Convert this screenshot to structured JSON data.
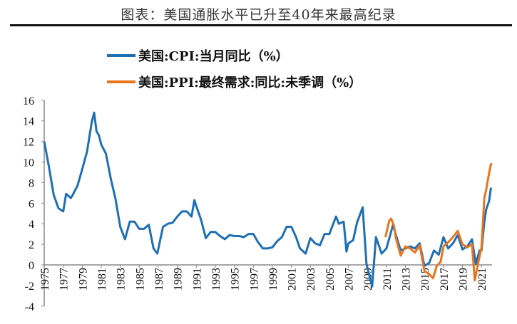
{
  "title": "图表：美国通胀水平已升至40年来最高纪录",
  "chart_data": {
    "type": "line",
    "title": "图表：美国通胀水平已升至40年来最高纪录",
    "xlabel": "",
    "ylabel": "",
    "ylim": [
      -4,
      16
    ],
    "xlim": [
      1975,
      2022.2
    ],
    "yticks": [
      "16",
      "14",
      "12",
      "10",
      "8",
      "6",
      "4",
      "2",
      "0",
      "-2",
      "-4"
    ],
    "xticks": [
      "1975",
      "1977",
      "1979",
      "1981",
      "1983",
      "1985",
      "1987",
      "1989",
      "1991",
      "1993",
      "1995",
      "1997",
      "1999",
      "2001",
      "2003",
      "2005",
      "2007",
      "2009",
      "2011",
      "2013",
      "2015",
      "2017",
      "2019",
      "2021"
    ],
    "legend_position": "top",
    "series": [
      {
        "name": "美国:CPI:当月同比（%）",
        "color": "#1f6fb4",
        "x": [
          1975.0,
          1975.5,
          1976.0,
          1976.5,
          1977.0,
          1977.3,
          1977.8,
          1978.0,
          1978.5,
          1979.0,
          1979.5,
          1980.0,
          1980.25,
          1980.5,
          1980.75,
          1981.0,
          1981.5,
          1982.0,
          1982.5,
          1983.0,
          1983.5,
          1984.0,
          1984.5,
          1985.0,
          1985.5,
          1986.0,
          1986.5,
          1986.9,
          1987.5,
          1988.0,
          1988.5,
          1989.0,
          1989.5,
          1990.0,
          1990.5,
          1990.8,
          1991.0,
          1991.5,
          1992.0,
          1992.5,
          1993.0,
          1993.5,
          1994.0,
          1994.5,
          1995.0,
          1995.5,
          1996.0,
          1996.5,
          1997.0,
          1997.5,
          1998.0,
          1998.5,
          1999.0,
          1999.5,
          2000.0,
          2000.5,
          2001.0,
          2001.5,
          2001.9,
          2002.5,
          2003.0,
          2003.5,
          2004.0,
          2004.5,
          2005.0,
          2005.7,
          2006.0,
          2006.5,
          2006.8,
          2007.0,
          2007.5,
          2007.9,
          2008.5,
          2008.9,
          2009.5,
          2009.9,
          2010.5,
          2011.0,
          2011.7,
          2012.0,
          2012.5,
          2013.0,
          2013.5,
          2014.0,
          2014.5,
          2015.0,
          2015.5,
          2016.0,
          2016.5,
          2017.0,
          2017.5,
          2018.0,
          2018.5,
          2019.0,
          2019.5,
          2020.0,
          2020.4,
          2020.8,
          2021.0,
          2021.3,
          2021.5,
          2021.8,
          2022.0
        ],
        "y": [
          12,
          9.5,
          6.8,
          5.5,
          5.2,
          6.9,
          6.5,
          6.8,
          7.7,
          9.3,
          11.0,
          13.9,
          14.8,
          13,
          12.6,
          11.7,
          10.8,
          8.4,
          6.4,
          3.7,
          2.5,
          4.2,
          4.2,
          3.5,
          3.5,
          3.9,
          1.6,
          1.1,
          3.7,
          4.0,
          4.1,
          4.7,
          5.2,
          5.2,
          4.7,
          6.3,
          5.7,
          4.4,
          2.6,
          3.2,
          3.2,
          2.8,
          2.5,
          2.9,
          2.8,
          2.8,
          2.7,
          3.0,
          3.0,
          2.2,
          1.6,
          1.6,
          1.7,
          2.3,
          2.7,
          3.7,
          3.7,
          2.7,
          1.6,
          1.1,
          2.6,
          2.1,
          1.9,
          3.0,
          3.0,
          4.7,
          4.0,
          4.2,
          1.3,
          2.1,
          2.4,
          4.1,
          5.6,
          0.1,
          -2.1,
          2.7,
          1.1,
          1.6,
          3.9,
          2.9,
          1.4,
          1.6,
          1.8,
          1.6,
          2.1,
          -0.1,
          0.2,
          1.4,
          1.0,
          2.7,
          1.6,
          2.1,
          2.9,
          1.5,
          1.8,
          2.5,
          0.1,
          1.4,
          1.4,
          4.2,
          5.4,
          6.2,
          7.5
        ]
      },
      {
        "name": "美国:PPI:最终需求:同比:未季调（%）",
        "color": "#e8741e",
        "x": [
          2010.9,
          2011.3,
          2011.5,
          2011.8,
          2012.0,
          2012.5,
          2013.0,
          2013.5,
          2014.0,
          2014.5,
          2015.0,
          2015.5,
          2015.9,
          2016.3,
          2016.7,
          2017.0,
          2017.5,
          2018.0,
          2018.5,
          2019.0,
          2019.5,
          2020.0,
          2020.3,
          2020.7,
          2021.0,
          2021.3,
          2021.5,
          2021.8,
          2022.0,
          2022.1
        ],
        "y": [
          2.7,
          4.3,
          4.5,
          3.8,
          2.6,
          0.9,
          1.8,
          1.6,
          1.2,
          1.9,
          -0.6,
          -0.9,
          -1.3,
          -0.1,
          0.3,
          1.8,
          2.2,
          2.7,
          3.3,
          2.0,
          1.7,
          2.0,
          -1.5,
          0.4,
          1.7,
          6.5,
          7.3,
          8.9,
          9.8,
          9.7
        ]
      }
    ]
  }
}
